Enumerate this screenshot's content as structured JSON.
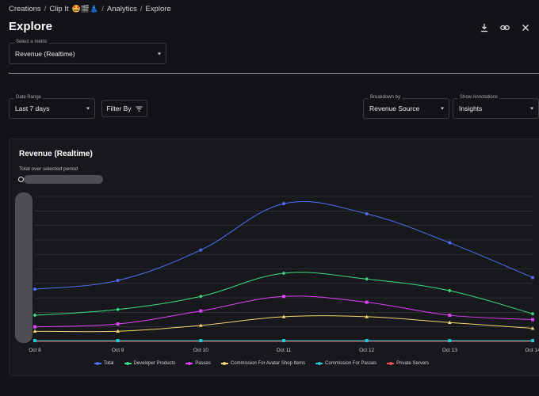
{
  "breadcrumb": {
    "items": [
      "Creations",
      "Clip It",
      "Analytics",
      "Explore"
    ],
    "emojis": "🤩🎬👗",
    "separator": "/"
  },
  "page": {
    "title": "Explore"
  },
  "actions": {
    "icons": [
      "download-icon",
      "link-icon",
      "close-icon"
    ]
  },
  "metric_select": {
    "label": "Select a metric",
    "value": "Revenue (Realtime)"
  },
  "date_range": {
    "label": "Date Range",
    "value": "Last 7 days"
  },
  "filter": {
    "label": "Filter By"
  },
  "breakdown": {
    "label": "Breakdown by",
    "value": "Revenue Source"
  },
  "annotations": {
    "label": "Show Annotations",
    "value": "Insights"
  },
  "chart_card": {
    "title": "Revenue (Realtime)",
    "subtitle": "Total over selected period"
  },
  "chart_data": {
    "type": "line",
    "title": "Revenue (Realtime)",
    "x": [
      "Oct 8",
      "Oct 9",
      "Oct 10",
      "Oct 11",
      "Oct 12",
      "Oct 13",
      "Oct 14"
    ],
    "ylim": [
      0,
      100
    ],
    "grid": true,
    "legend_position": "bottom",
    "series": [
      {
        "name": "Total",
        "color": "#4f6ef7",
        "marker": "circle",
        "values": [
          36,
          42,
          63,
          95,
          88,
          68,
          44
        ]
      },
      {
        "name": "Developer Products",
        "color": "#3ddc84",
        "marker": "diamond",
        "values": [
          18,
          22,
          31,
          47,
          43,
          35,
          19
        ]
      },
      {
        "name": "Passes",
        "color": "#e040fb",
        "marker": "square",
        "values": [
          10,
          12,
          21,
          31,
          27,
          18,
          15
        ]
      },
      {
        "name": "Commission For Avatar Shop Items",
        "color": "#f5d76e",
        "marker": "triangle",
        "values": [
          7,
          7,
          11,
          17,
          17,
          13,
          9
        ]
      },
      {
        "name": "Commission For Passes",
        "color": "#26c6da",
        "marker": "square",
        "values": [
          0.5,
          0.5,
          0.5,
          0.5,
          0.5,
          0.5,
          0.5
        ]
      },
      {
        "name": "Private Servers",
        "color": "#ef5350",
        "marker": "circle",
        "values": [
          0,
          0,
          0,
          0,
          0,
          0,
          0
        ]
      }
    ]
  }
}
